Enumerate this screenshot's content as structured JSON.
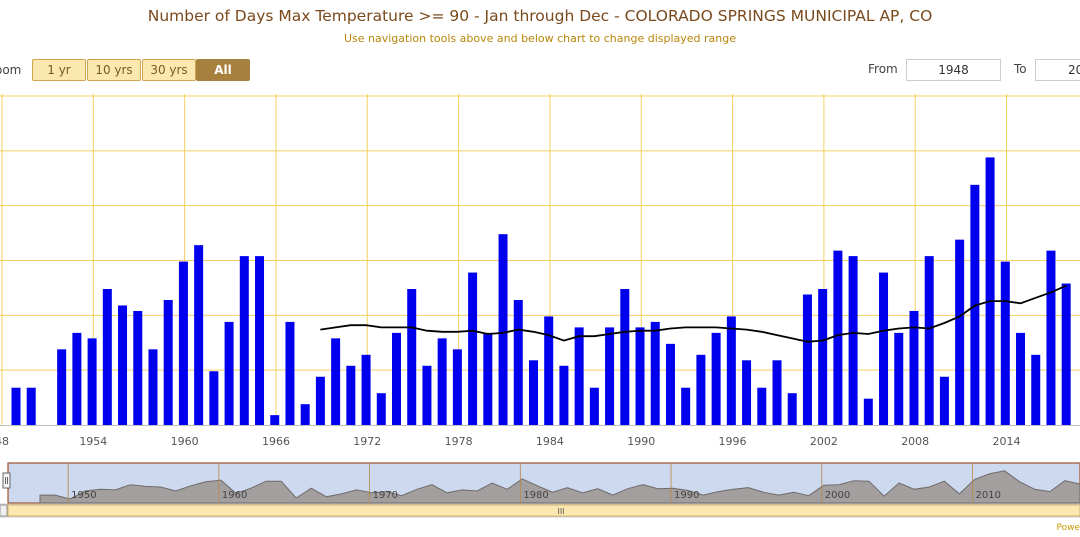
{
  "header": {
    "title": "Number of Days Max Temperature >= 90 - Jan through Dec - COLORADO SPRINGS MUNICIPAL AP, CO",
    "subtitle": "Use navigation tools above and below chart to change displayed range"
  },
  "range_selector": {
    "zoom_label": "oom",
    "buttons": [
      "1 yr",
      "10 yrs",
      "30 yrs",
      "All"
    ],
    "selected": "All",
    "from_label": "From",
    "from_value": "1948",
    "to_label": "To",
    "to_value": "20"
  },
  "navigator": {
    "scrollbar_grip": "III",
    "labels": [
      "1950",
      "1960",
      "1970",
      "1980",
      "1990",
      "2000",
      "2010"
    ]
  },
  "credits": "Powe",
  "colors": {
    "bar": "#0000ee",
    "moving_average": "#000000",
    "grid": "#f5d060",
    "navigator_bg": "#cdd9ef",
    "navigator_border": "#a0522d",
    "scrollbar": "#fbe8b0"
  },
  "chart_data": {
    "type": "bar",
    "title": "Number of Days Max Temperature >= 90 - Jan through Dec - COLORADO SPRINGS MUNICIPAL AP, CO",
    "xlabel": "",
    "ylabel": "",
    "grid": true,
    "x_tick_labels": [
      "48",
      "1954",
      "1960",
      "1966",
      "1972",
      "1978",
      "1984",
      "1990",
      "1996",
      "2002",
      "2008",
      "2014"
    ],
    "ylim": [
      0,
      30
    ],
    "categories": [
      1948,
      1949,
      1950,
      1951,
      1952,
      1953,
      1954,
      1955,
      1956,
      1957,
      1958,
      1959,
      1960,
      1961,
      1962,
      1963,
      1964,
      1965,
      1966,
      1967,
      1968,
      1969,
      1970,
      1971,
      1972,
      1973,
      1974,
      1975,
      1976,
      1977,
      1978,
      1979,
      1980,
      1981,
      1982,
      1983,
      1984,
      1985,
      1986,
      1987,
      1988,
      1989,
      1990,
      1991,
      1992,
      1993,
      1994,
      1995,
      1996,
      1997,
      1998,
      1999,
      2000,
      2001,
      2002,
      2003,
      2004,
      2005,
      2006,
      2007,
      2008,
      2009,
      2010,
      2011,
      2012,
      2013,
      2014,
      2015,
      2016,
      2017
    ],
    "series": [
      {
        "type": "bar",
        "values": [
          3.4,
          3.4,
          0,
          6.9,
          8.4,
          7.9,
          12.4,
          10.9,
          10.4,
          6.9,
          11.4,
          14.9,
          16.4,
          4.9,
          9.4,
          15.4,
          15.4,
          0.9,
          9.4,
          1.9,
          4.4,
          7.9,
          5.4,
          6.4,
          2.9,
          8.4,
          12.4,
          5.4,
          7.9,
          6.9,
          13.9,
          8.4,
          17.4,
          11.4,
          5.9,
          9.9,
          5.4,
          8.9,
          3.4,
          8.9,
          12.4,
          8.9,
          9.4,
          7.4,
          3.4,
          6.4,
          8.4,
          9.9,
          5.9,
          3.4,
          5.9,
          2.9,
          11.9,
          12.4,
          15.9,
          15.4,
          2.4,
          13.9,
          8.4,
          10.4,
          15.4,
          4.4,
          16.9,
          21.9,
          24.4,
          14.9,
          8.4,
          6.4,
          15.9,
          12.9
        ]
      },
      {
        "type": "line",
        "x": [
          1968,
          1969,
          1970,
          1971,
          1972,
          1973,
          1974,
          1975,
          1976,
          1977,
          1978,
          1979,
          1980,
          1981,
          1982,
          1983,
          1984,
          1985,
          1986,
          1987,
          1988,
          1989,
          1990,
          1991,
          1992,
          1993,
          1994,
          1995,
          1996,
          1997,
          1998,
          1999,
          2000,
          2001,
          2002,
          2003,
          2004,
          2005,
          2006,
          2007,
          2008,
          2009,
          2010,
          2011,
          2012,
          2013,
          2014,
          2015,
          2016,
          2017
        ],
        "values": [
          8.7,
          8.9,
          9.1,
          9.1,
          8.9,
          8.9,
          8.9,
          8.6,
          8.5,
          8.5,
          8.6,
          8.3,
          8.4,
          8.7,
          8.5,
          8.2,
          7.7,
          8.1,
          8.1,
          8.3,
          8.5,
          8.6,
          8.6,
          8.8,
          8.9,
          8.9,
          8.9,
          8.8,
          8.7,
          8.5,
          8.2,
          7.9,
          7.6,
          7.7,
          8.2,
          8.4,
          8.3,
          8.6,
          8.8,
          8.9,
          8.8,
          9.3,
          9.9,
          10.9,
          11.3,
          11.3,
          11.1,
          11.6,
          12.1,
          12.7
        ]
      }
    ]
  }
}
